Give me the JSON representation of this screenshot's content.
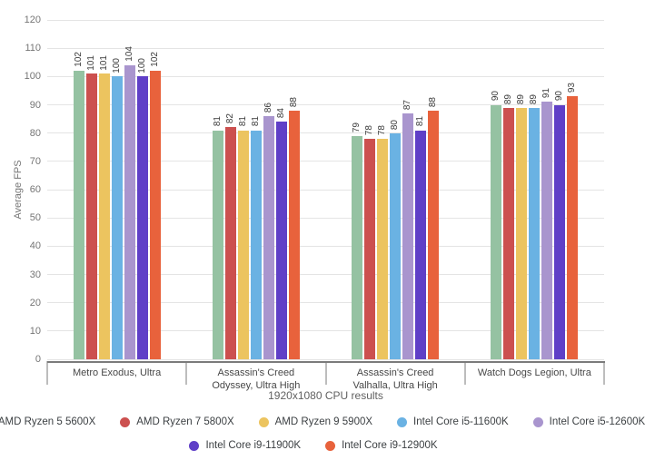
{
  "chart_data": {
    "type": "bar",
    "title": "",
    "ylabel": "Average FPS",
    "xlabel": "1920x1080 CPU results",
    "ylim": [
      0,
      120
    ],
    "yticks": [
      0,
      10,
      20,
      30,
      40,
      50,
      60,
      70,
      80,
      90,
      100,
      110,
      120
    ],
    "grid": true,
    "legend_position": "bottom",
    "categories": [
      "Metro Exodus, Ultra",
      "Assassin's Creed Odyssey, Ultra High",
      "Assassin's Creed Valhalla, Ultra High",
      "Watch Dogs Legion, Ultra"
    ],
    "series": [
      {
        "name": "AMD Ryzen 5 5600X",
        "color": "#95c2a2",
        "values": [
          102,
          81,
          79,
          90
        ]
      },
      {
        "name": "AMD Ryzen 7 5800X",
        "color": "#cc504f",
        "values": [
          101,
          82,
          78,
          89
        ]
      },
      {
        "name": "AMD Ryzen 9 5900X",
        "color": "#ecc45f",
        "values": [
          101,
          81,
          78,
          89
        ]
      },
      {
        "name": "Intel Core i5-11600K",
        "color": "#6ab2e3",
        "values": [
          100,
          81,
          80,
          89
        ]
      },
      {
        "name": "Intel Core i5-12600K",
        "color": "#a995ce",
        "values": [
          104,
          86,
          87,
          91
        ]
      },
      {
        "name": "Intel Core i9-11900K",
        "color": "#5f3fc7",
        "values": [
          100,
          84,
          81,
          90
        ]
      },
      {
        "name": "Intel Core i9-12900K",
        "color": "#e8623c",
        "values": [
          102,
          88,
          88,
          93
        ]
      }
    ]
  }
}
